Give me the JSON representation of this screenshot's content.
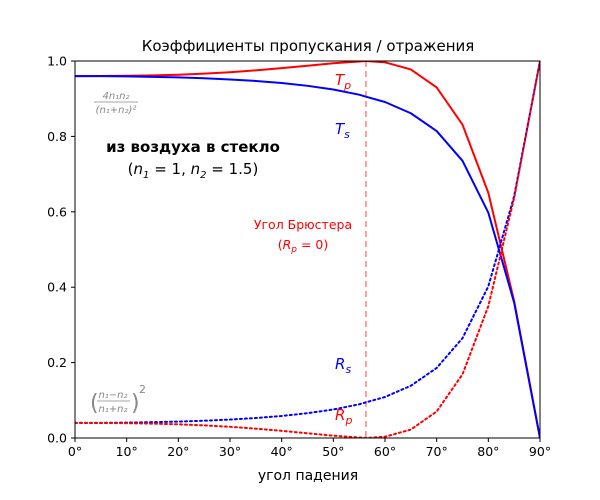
{
  "chart_data": {
    "type": "line",
    "title": "Коэффициенты пропускания / отражения",
    "xlabel": "угол падения",
    "ylabel": "",
    "xlim": [
      0,
      90
    ],
    "ylim": [
      0,
      1.0
    ],
    "x_unit": "°",
    "x_ticks": [
      0,
      10,
      20,
      30,
      40,
      50,
      60,
      70,
      80,
      90
    ],
    "x_tick_labels": [
      "0°",
      "10°",
      "20°",
      "30°",
      "40°",
      "50°",
      "60°",
      "70°",
      "80°",
      "90°"
    ],
    "y_ticks": [
      0.0,
      0.2,
      0.4,
      0.6,
      0.8,
      1.0
    ],
    "y_tick_labels": [
      "0.0",
      "0.2",
      "0.4",
      "0.6",
      "0.8",
      "1.0"
    ],
    "grid": false,
    "legend": "none",
    "x": [
      0,
      5,
      10,
      15,
      20,
      25,
      30,
      35,
      40,
      45,
      50,
      55,
      56.31,
      60,
      65,
      70,
      75,
      80,
      85,
      90
    ],
    "series": [
      {
        "name": "T_p",
        "color": "#ff0000",
        "style": "solid",
        "values": [
          0.96,
          0.9601,
          0.9608,
          0.9618,
          0.9637,
          0.9665,
          0.9703,
          0.9752,
          0.981,
          0.9875,
          0.9939,
          0.9987,
          1.0,
          0.9966,
          0.9776,
          0.9298,
          0.8311,
          0.6502,
          0.3628,
          0.0
        ]
      },
      {
        "name": "T_s",
        "color": "#0000ff",
        "style": "solid",
        "values": [
          0.96,
          0.9598,
          0.9592,
          0.958,
          0.9565,
          0.9541,
          0.9511,
          0.947,
          0.9416,
          0.9342,
          0.9244,
          0.9106,
          0.9054,
          0.8912,
          0.8614,
          0.8142,
          0.7352,
          0.5977,
          0.3588,
          0.0
        ]
      },
      {
        "name": "R_s",
        "color": "#0000ff",
        "style": "dotted",
        "values": [
          0.04,
          0.0402,
          0.0408,
          0.042,
          0.0435,
          0.0459,
          0.0489,
          0.053,
          0.0584,
          0.0658,
          0.0756,
          0.0894,
          0.0946,
          0.1088,
          0.1386,
          0.1858,
          0.2648,
          0.4023,
          0.6412,
          1.0
        ]
      },
      {
        "name": "R_p",
        "color": "#ff0000",
        "style": "dotted",
        "values": [
          0.04,
          0.0399,
          0.0392,
          0.0382,
          0.0363,
          0.0335,
          0.0297,
          0.0248,
          0.019,
          0.0125,
          0.0061,
          0.0013,
          0.0,
          0.0034,
          0.0224,
          0.0702,
          0.1689,
          0.3498,
          0.6372,
          1.0
        ]
      }
    ],
    "brewster_angle": 56.31,
    "annotations": {
      "Tp": {
        "main": "T",
        "sub": "p"
      },
      "Ts": {
        "main": "T",
        "sub": "s"
      },
      "Rs": {
        "main": "R",
        "sub": "s"
      },
      "Rp": {
        "main": "R",
        "sub": "p"
      },
      "headline": "из воздуха в стекло",
      "media": {
        "open": "(",
        "n1": "n",
        "n1_sub": "1",
        "n1_val": " = 1, ",
        "n2": "n",
        "n2_sub": "2",
        "n2_val": " = 1.5)"
      },
      "brewster_line1": "Угол Брюстера",
      "brewster_line2": {
        "open": "(",
        "main": "R",
        "sub": "p",
        "rest": " = 0)"
      },
      "formula_T": {
        "num": "4n₁n₂",
        "den": "(n₁+n₂)²"
      },
      "formula_R": {
        "num": "n₁−n₂",
        "den": "n₁+n₂",
        "power": "2"
      }
    }
  }
}
